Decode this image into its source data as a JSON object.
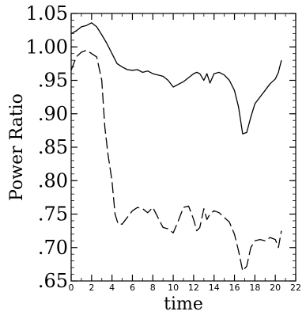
{
  "chart_data": {
    "type": "line",
    "title": "",
    "xlabel": "time",
    "ylabel": "Power Ratio",
    "xlim": [
      0,
      22
    ],
    "ylim": [
      0.65,
      1.05
    ],
    "xticks": [
      0,
      2,
      4,
      6,
      8,
      10,
      12,
      14,
      16,
      18,
      20,
      22
    ],
    "xtick_labels": [
      "0",
      "2",
      "4",
      "6",
      "8",
      "10",
      "12",
      "14",
      "16",
      "18",
      "20",
      "22"
    ],
    "yticks": [
      0.65,
      0.7,
      0.75,
      0.8,
      0.85,
      0.9,
      0.95,
      1.0,
      1.05
    ],
    "ytick_labels": [
      ".65",
      ".70",
      ".75",
      ".80",
      ".85",
      ".90",
      ".95",
      "1.00",
      "1.05"
    ],
    "grid": false,
    "legend": "none",
    "series": [
      {
        "style": "solid",
        "color": "#000000",
        "x": [
          0,
          0.5,
          1,
          1.5,
          2,
          2.5,
          3,
          3.5,
          4,
          4.5,
          5,
          5.5,
          6,
          6.5,
          7,
          7.5,
          8,
          8.5,
          9,
          9.5,
          10,
          10.5,
          11,
          11.5,
          12,
          12.3,
          12.6,
          13,
          13.3,
          13.6,
          14,
          14.5,
          15,
          15.5,
          16,
          16.4,
          16.8,
          17.2,
          17.6,
          18,
          18.5,
          19,
          19.5,
          20,
          20.3,
          20.6
        ],
        "y": [
          1.02,
          1.024,
          1.03,
          1.032,
          1.036,
          1.03,
          1.018,
          1.005,
          0.99,
          0.975,
          0.97,
          0.966,
          0.965,
          0.966,
          0.962,
          0.964,
          0.96,
          0.958,
          0.956,
          0.95,
          0.94,
          0.944,
          0.948,
          0.954,
          0.96,
          0.962,
          0.96,
          0.95,
          0.96,
          0.946,
          0.96,
          0.962,
          0.958,
          0.95,
          0.935,
          0.91,
          0.87,
          0.872,
          0.895,
          0.915,
          0.925,
          0.935,
          0.945,
          0.952,
          0.962,
          0.98
        ]
      },
      {
        "style": "dashed",
        "color": "#000000",
        "x": [
          0,
          0.5,
          1,
          1.5,
          2,
          2.5,
          3,
          3.3,
          3.6,
          4,
          4.3,
          4.6,
          5,
          5.5,
          6,
          6.5,
          7,
          7.5,
          8,
          8.5,
          9,
          9.5,
          10,
          10.5,
          11,
          11.5,
          12,
          12.3,
          12.6,
          13,
          13.3,
          13.6,
          14,
          14.5,
          15,
          15.5,
          16,
          16.4,
          16.8,
          17.2,
          17.6,
          18,
          18.5,
          19,
          19.5,
          20,
          20.3,
          20.6
        ],
        "y": [
          0.965,
          0.985,
          0.992,
          0.995,
          0.99,
          0.985,
          0.95,
          0.88,
          0.84,
          0.8,
          0.75,
          0.735,
          0.735,
          0.745,
          0.755,
          0.76,
          0.758,
          0.752,
          0.76,
          0.745,
          0.73,
          0.728,
          0.722,
          0.74,
          0.76,
          0.762,
          0.742,
          0.725,
          0.73,
          0.758,
          0.742,
          0.75,
          0.755,
          0.752,
          0.745,
          0.738,
          0.72,
          0.695,
          0.665,
          0.672,
          0.7,
          0.71,
          0.712,
          0.71,
          0.715,
          0.712,
          0.7,
          0.725
        ]
      }
    ]
  }
}
